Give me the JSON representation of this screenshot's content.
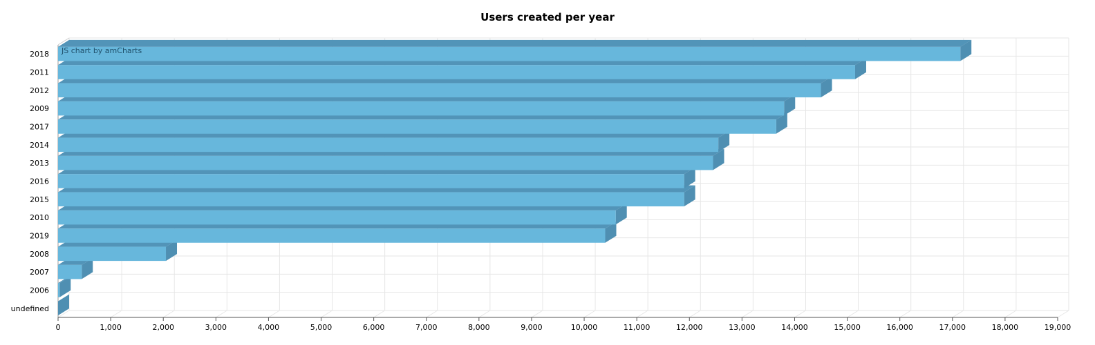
{
  "chart_data": {
    "type": "bar",
    "orientation": "horizontal",
    "depth3d": true,
    "title": "Users created per year",
    "categories": [
      "2018",
      "2011",
      "2012",
      "2009",
      "2017",
      "2014",
      "2013",
      "2016",
      "2015",
      "2010",
      "2019",
      "2008",
      "2007",
      "2006",
      "undefined"
    ],
    "values": [
      17150,
      15150,
      14500,
      13800,
      13650,
      12550,
      12450,
      11900,
      11900,
      10600,
      10400,
      2050,
      450,
      30,
      0
    ],
    "xlim": [
      0,
      19000
    ],
    "xticks": [
      0,
      1000,
      2000,
      3000,
      4000,
      5000,
      6000,
      7000,
      8000,
      9000,
      10000,
      11000,
      12000,
      13000,
      14000,
      15000,
      16000,
      17000,
      18000,
      19000
    ],
    "xticklabels": [
      "0",
      "1,000",
      "2,000",
      "3,000",
      "4,000",
      "5,000",
      "6,000",
      "7,000",
      "8,000",
      "9,000",
      "10,000",
      "11,000",
      "12,000",
      "13,000",
      "14,000",
      "15,000",
      "16,000",
      "17,000",
      "18,000",
      "19,000"
    ],
    "xlabel": "",
    "ylabel": "",
    "grid": true,
    "colors": {
      "bar_front": "#67b7dc",
      "bar_top": "#5294b8",
      "bar_side": "#4f8fb2",
      "grid": "#e6e6e6",
      "axis": "#555555"
    }
  },
  "credit_text": "JS chart by amCharts"
}
